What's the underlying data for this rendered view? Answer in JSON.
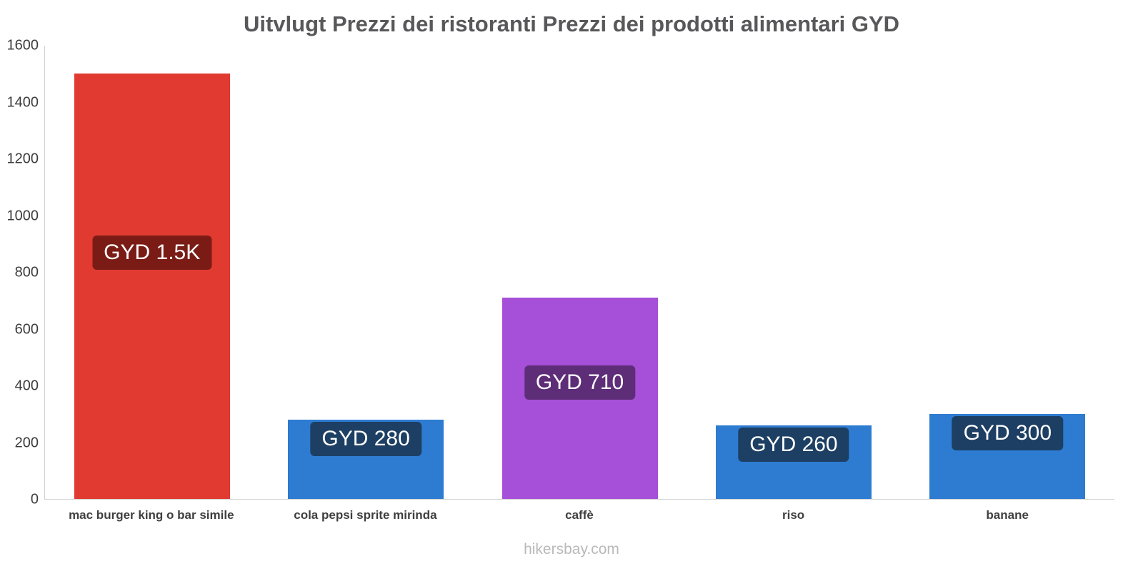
{
  "chart_data": {
    "type": "bar",
    "title": "Uitvlugt Prezzi dei ristoranti Prezzi dei prodotti alimentari GYD",
    "categories": [
      "mac burger king o bar simile",
      "cola pepsi sprite mirinda",
      "caffè",
      "riso",
      "banane"
    ],
    "values": [
      1500,
      280,
      710,
      260,
      300
    ],
    "bar_labels": [
      "GYD 1.5K",
      "GYD 280",
      "GYD 710",
      "GYD 260",
      "GYD 300"
    ],
    "bar_colors": [
      "#e03a31",
      "#2d7cd1",
      "#a64fd8",
      "#2d7cd1",
      "#2d7cd1"
    ],
    "label_bg_colors": [
      "#7a1c15",
      "#1d3f63",
      "#5e2d78",
      "#1d3f63",
      "#1d3f63"
    ],
    "ylim": [
      0,
      1600
    ],
    "yticks": [
      0,
      200,
      400,
      600,
      800,
      1000,
      1200,
      1400,
      1600
    ],
    "grid": false,
    "legend": "none",
    "footer": "hikersbay.com"
  }
}
